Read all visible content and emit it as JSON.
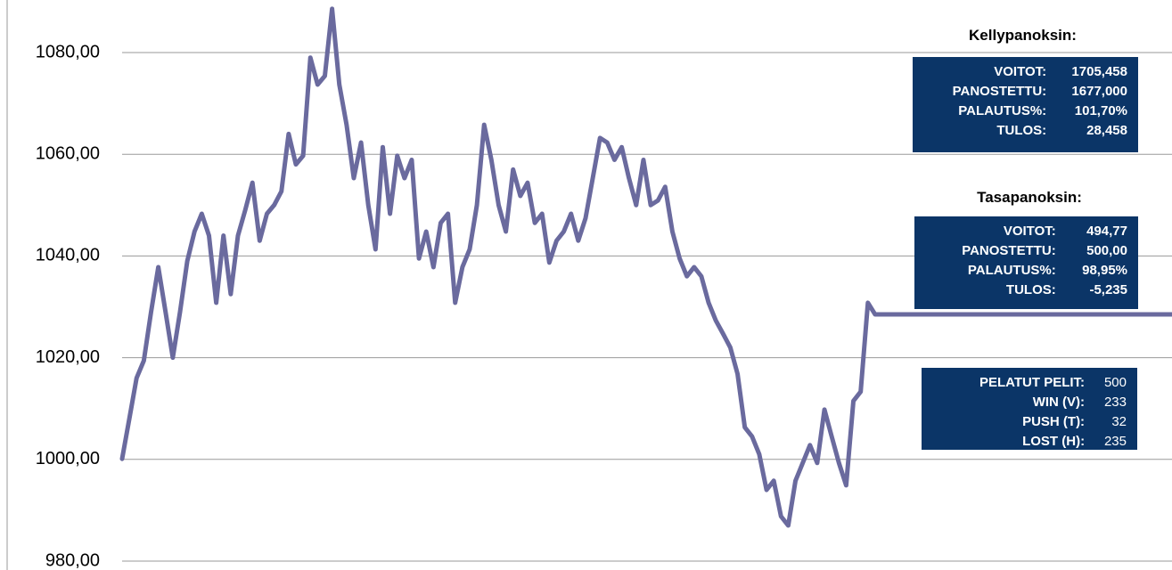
{
  "chart_data": {
    "type": "line",
    "color": "#6a6a9e",
    "values": [
      1000.1,
      1008,
      1016,
      1019.4,
      1029,
      1037.8,
      1029,
      1020,
      1029,
      1039,
      1044.8,
      1048.3,
      1044,
      1030.8,
      1044,
      1032.5,
      1044,
      1049,
      1054.4,
      1043,
      1048.3,
      1050,
      1052.7,
      1064,
      1058,
      1059.7,
      1079,
      1073.7,
      1075.4,
      1088.6,
      1073.7,
      1065.8,
      1055.3,
      1062.3,
      1050,
      1041.3,
      1061.4,
      1048.3,
      1059.7,
      1055.3,
      1058.9,
      1039.5,
      1044.8,
      1037.8,
      1046.5,
      1048.3,
      1030.8,
      1037.8,
      1041.3,
      1050,
      1065.8,
      1058.9,
      1050,
      1044.8,
      1057,
      1051.8,
      1054.4,
      1046.5,
      1048.3,
      1038.7,
      1043,
      1044.8,
      1048.3,
      1043,
      1047.4,
      1055.3,
      1063.2,
      1062.3,
      1058.9,
      1061.4,
      1055.3,
      1050,
      1058.9,
      1050,
      1050.9,
      1053.6,
      1044.8,
      1039.5,
      1036,
      1037.8,
      1036,
      1030.8,
      1027.3,
      1024.7,
      1022,
      1016.8,
      1006.3,
      1004.5,
      1001,
      994,
      995.8,
      988.8,
      987,
      995.8,
      999.3,
      1002.8,
      999.3,
      1009.8,
      1004.5,
      999.3,
      994.9,
      1011.5,
      1013.3,
      1030.8,
      1028.5,
      1028.5,
      1028.5,
      1028.5,
      1028.5,
      1028.5,
      1028.5,
      1028.5,
      1028.5,
      1028.5,
      1028.5,
      1028.5,
      1028.5,
      1028.5,
      1028.5,
      1028.5,
      1028.5,
      1028.5,
      1028.5,
      1028.5,
      1028.5,
      1028.5,
      1028.5,
      1028.5,
      1028.5,
      1028.5,
      1028.5,
      1028.5,
      1028.5,
      1028.5,
      1028.5,
      1028.5,
      1028.5,
      1028.5,
      1028.5,
      1028.5,
      1028.5,
      1028.5,
      1028.5,
      1028.5,
      1028.5,
      1028.5
    ],
    "ylim": [
      978.25,
      1090.33
    ],
    "yticks": [
      {
        "value": 980,
        "label": "980,00"
      },
      {
        "value": 1000,
        "label": "1000,00"
      },
      {
        "value": 1020,
        "label": "1020,00"
      },
      {
        "value": 1040,
        "label": "1040,00"
      },
      {
        "value": 1060,
        "label": "1060,00"
      },
      {
        "value": 1080,
        "label": "1080,00"
      }
    ],
    "grid": true,
    "panels": [
      {
        "title": "Kellypanoksin:",
        "rows": [
          [
            "VOITOT:",
            "1705,458"
          ],
          [
            "PANOSTETTU:",
            "1677,000"
          ],
          [
            "PALAUTUS%:",
            "101,70%"
          ],
          [
            "TULOS:",
            "28,458"
          ]
        ]
      },
      {
        "title": "Tasapanoksin:",
        "rows": [
          [
            "VOITOT:",
            "494,77"
          ],
          [
            "PANOSTETTU:",
            "500,00"
          ],
          [
            "PALAUTUS%:",
            "98,95%"
          ],
          [
            "TULOS:",
            "-5,235"
          ]
        ]
      },
      {
        "rows": [
          [
            "PELATUT PELIT:",
            "500"
          ],
          [
            "WIN (V):",
            "233"
          ],
          [
            "PUSH (T):",
            "32"
          ],
          [
            "LOST (H):",
            "235"
          ]
        ]
      }
    ]
  }
}
